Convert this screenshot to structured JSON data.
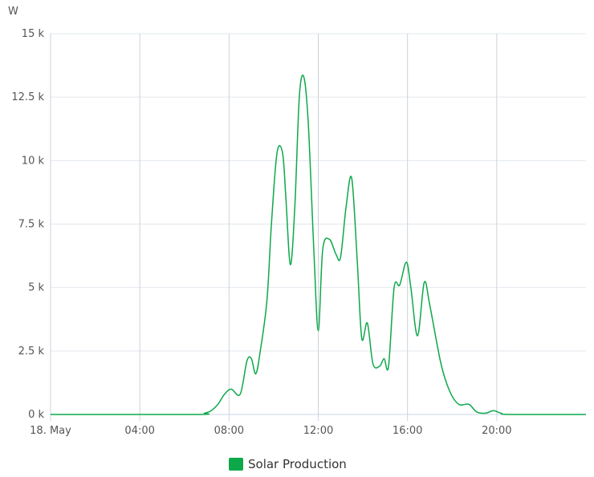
{
  "chart_data": {
    "type": "line",
    "unit_label": "W",
    "x_unit": "hour of day",
    "xlim": [
      0,
      24
    ],
    "ylim": [
      0,
      15000
    ],
    "y_ticks": [
      {
        "value": 0,
        "label": "0 k"
      },
      {
        "value": 2500,
        "label": "2.5 k"
      },
      {
        "value": 5000,
        "label": "5 k"
      },
      {
        "value": 7500,
        "label": "7.5 k"
      },
      {
        "value": 10000,
        "label": "10 k"
      },
      {
        "value": 12500,
        "label": "12.5 k"
      },
      {
        "value": 15000,
        "label": "15 k"
      }
    ],
    "x_ticks": [
      {
        "value": 0,
        "label": "18. May"
      },
      {
        "value": 4,
        "label": "04:00"
      },
      {
        "value": 8,
        "label": "08:00"
      },
      {
        "value": 12,
        "label": "12:00"
      },
      {
        "value": 16,
        "label": "16:00"
      },
      {
        "value": 20,
        "label": "20:00"
      }
    ],
    "grid": true,
    "legend_position": "bottom-center",
    "series": [
      {
        "name": "Solar Production",
        "color": "#0da84a",
        "points": [
          [
            0,
            0
          ],
          [
            6.5,
            0
          ],
          [
            6.9,
            50
          ],
          [
            7.2,
            150
          ],
          [
            7.5,
            400
          ],
          [
            7.8,
            800
          ],
          [
            8.1,
            1000
          ],
          [
            8.5,
            800
          ],
          [
            8.8,
            2100
          ],
          [
            9.0,
            2200
          ],
          [
            9.2,
            1600
          ],
          [
            9.4,
            2500
          ],
          [
            9.7,
            4500
          ],
          [
            9.9,
            7500
          ],
          [
            10.15,
            10300
          ],
          [
            10.4,
            10300
          ],
          [
            10.55,
            8500
          ],
          [
            10.75,
            5900
          ],
          [
            10.95,
            8200
          ],
          [
            11.15,
            12500
          ],
          [
            11.35,
            13300
          ],
          [
            11.55,
            11500
          ],
          [
            11.8,
            6500
          ],
          [
            12.0,
            3300
          ],
          [
            12.2,
            6500
          ],
          [
            12.5,
            6900
          ],
          [
            12.8,
            6300
          ],
          [
            13.0,
            6200
          ],
          [
            13.25,
            8200
          ],
          [
            13.5,
            9300
          ],
          [
            13.75,
            6000
          ],
          [
            13.95,
            3000
          ],
          [
            14.2,
            3600
          ],
          [
            14.45,
            2000
          ],
          [
            14.75,
            1900
          ],
          [
            14.95,
            2200
          ],
          [
            15.15,
            1900
          ],
          [
            15.4,
            5000
          ],
          [
            15.65,
            5100
          ],
          [
            15.95,
            6000
          ],
          [
            16.15,
            5000
          ],
          [
            16.45,
            3100
          ],
          [
            16.75,
            5200
          ],
          [
            17.0,
            4300
          ],
          [
            17.5,
            2000
          ],
          [
            17.9,
            900
          ],
          [
            18.3,
            400
          ],
          [
            18.75,
            400
          ],
          [
            19.1,
            100
          ],
          [
            19.5,
            50
          ],
          [
            19.85,
            150
          ],
          [
            20.2,
            50
          ],
          [
            20.6,
            0
          ],
          [
            24,
            0
          ]
        ]
      }
    ]
  }
}
